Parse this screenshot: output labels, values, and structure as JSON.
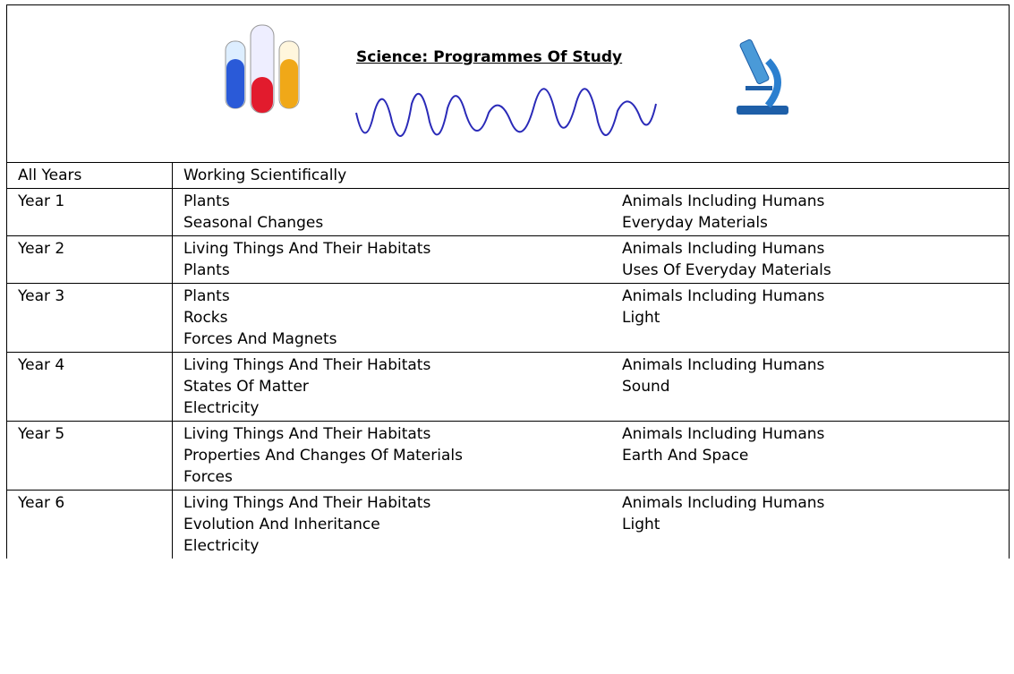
{
  "header": {
    "title": "Science: Programmes Of Study"
  },
  "table": {
    "rows": [
      {
        "year": "All Years",
        "left": [
          "Working Scientifically"
        ],
        "right": []
      },
      {
        "year": "Year 1",
        "left": [
          "Plants",
          "Seasonal Changes"
        ],
        "right": [
          "Animals Including Humans",
          "Everyday Materials"
        ]
      },
      {
        "year": "Year 2",
        "left": [
          "Living Things And Their Habitats",
          "Plants"
        ],
        "right": [
          "Animals Including Humans",
          "Uses Of Everyday Materials"
        ]
      },
      {
        "year": "Year 3",
        "left": [
          "Plants",
          "Rocks",
          "Forces And Magnets"
        ],
        "right": [
          "Animals Including Humans",
          "Light"
        ]
      },
      {
        "year": "Year 4",
        "left": [
          "Living Things And Their Habitats",
          "States Of Matter",
          "Electricity"
        ],
        "right": [
          "Animals Including Humans",
          "Sound"
        ]
      },
      {
        "year": "Year 5",
        "left": [
          "Living Things And Their Habitats",
          "Properties And Changes Of Materials",
          "Forces"
        ],
        "right": [
          "Animals Including Humans",
          "Earth And Space"
        ]
      },
      {
        "year": "Year 6",
        "left": [
          "Living Things And Their Habitats",
          "Evolution And Inheritance",
          "Electricity"
        ],
        "right": [
          "Animals Including Humans",
          "Light"
        ]
      }
    ]
  }
}
